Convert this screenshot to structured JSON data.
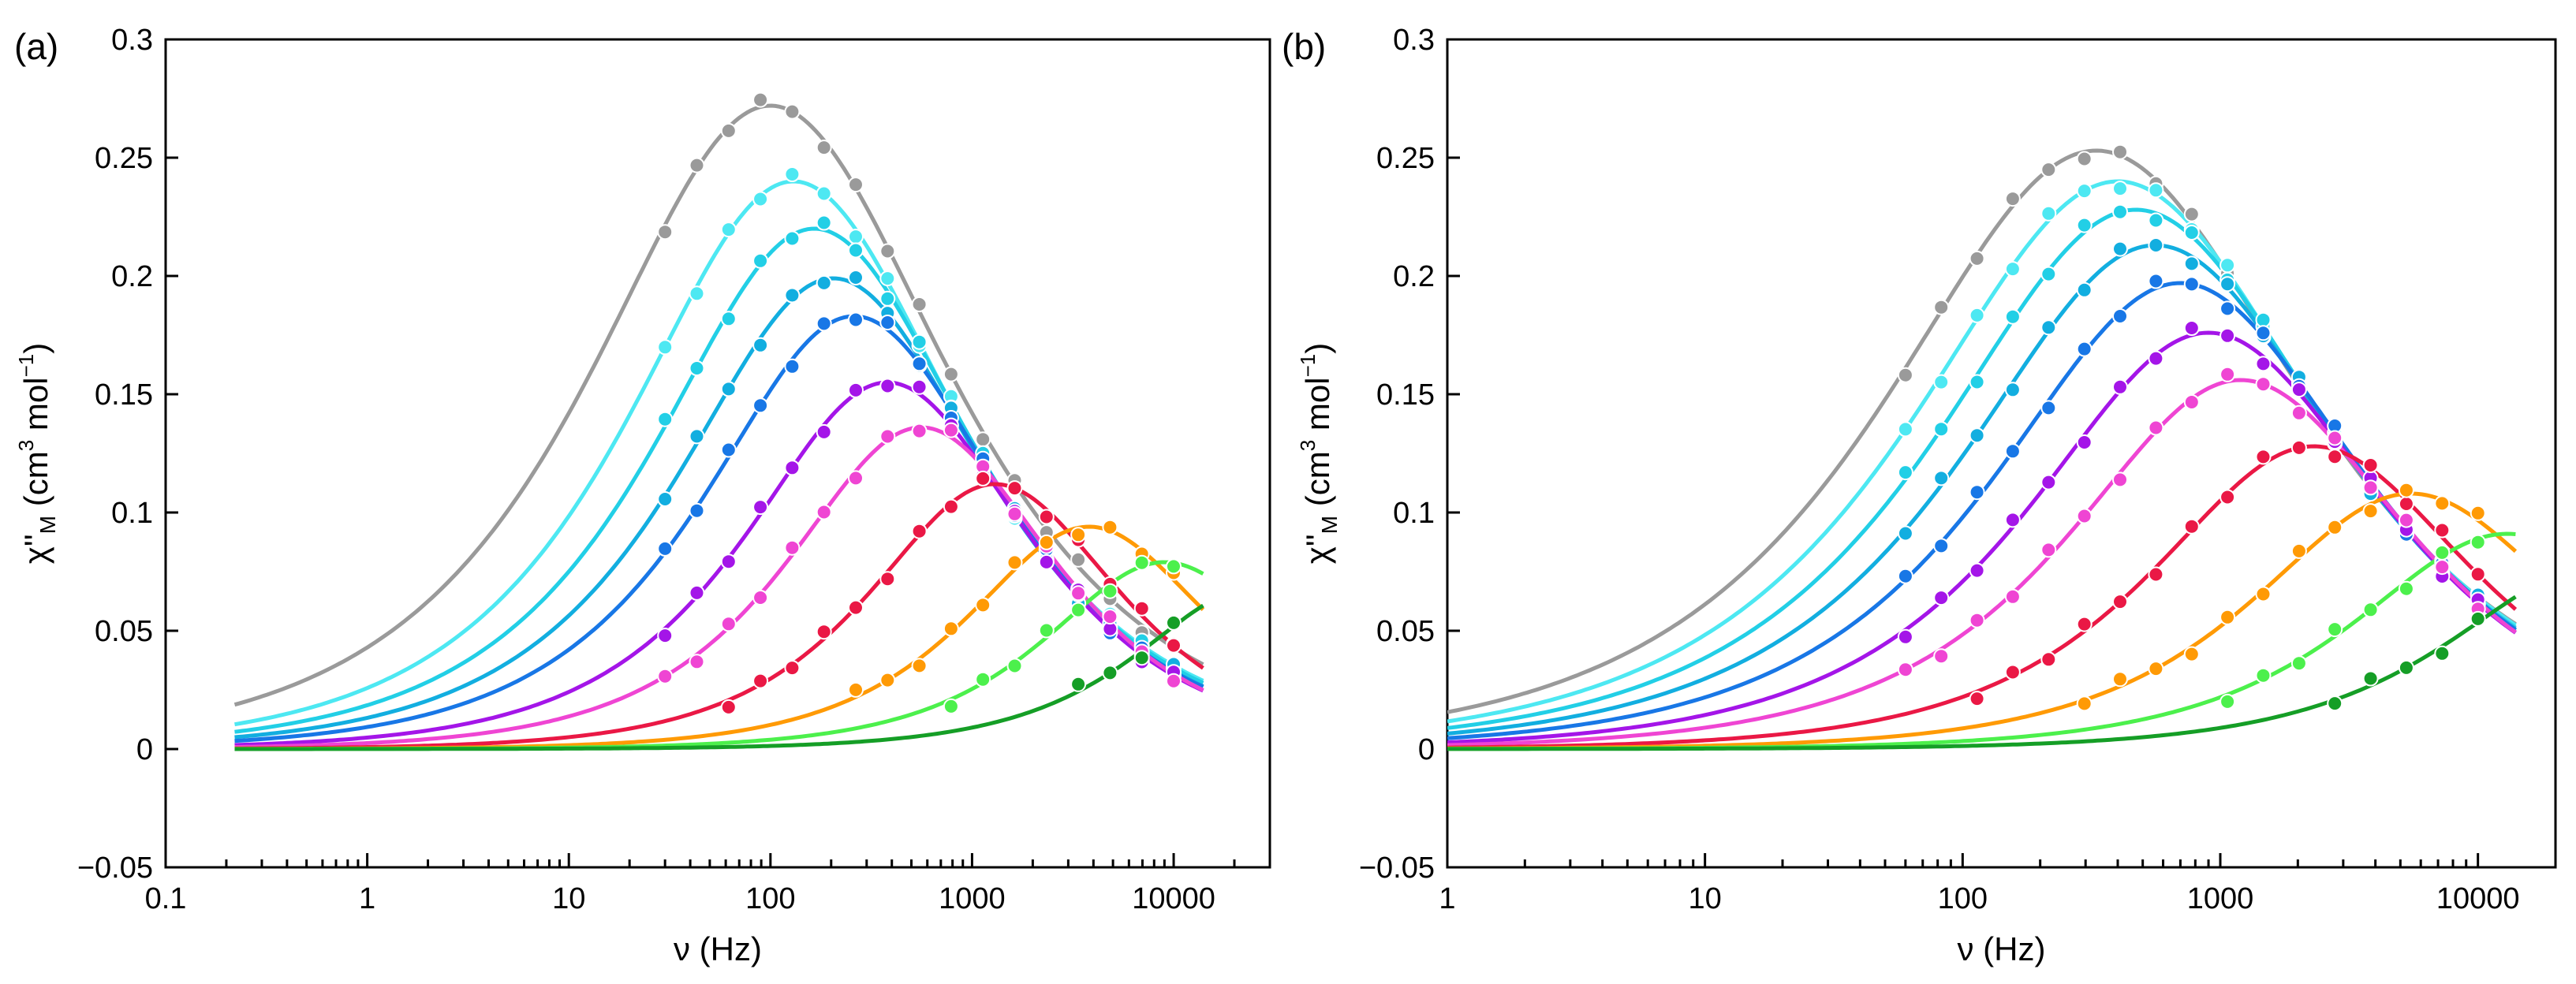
{
  "chart_data": [
    {
      "type": "scatter",
      "panel": "(a)",
      "xscale": "log",
      "xlabel": "ν (Hz)",
      "ylabel": {
        "chi": "χ''",
        "sub": "M",
        "open": " (cm",
        "sup3": "3",
        "mid": " mol",
        "supm1": "−1",
        "close": ")"
      },
      "xlim": [
        0.1,
        30000
      ],
      "ylim": [
        -0.05,
        0.3
      ],
      "xticks": [
        0.1,
        1,
        10,
        100,
        1000,
        10000
      ],
      "xtick_labels": [
        "0.1",
        "1",
        "10",
        "100",
        "1000",
        "10000"
      ],
      "yticks": [
        -0.05,
        0,
        0.05,
        0.1,
        0.15,
        0.2,
        0.25,
        0.3
      ],
      "ytick_labels": [
        "−0.05",
        "0",
        "0.05",
        "0.1",
        "0.15",
        "0.2",
        "0.25",
        "0.3"
      ],
      "fit_range": [
        0.22,
        14000
      ],
      "point_range": [
        30,
        10000
      ],
      "series": [
        {
          "name": "grey",
          "color": "#9a9a9a",
          "peak_freq": 100,
          "peak_height": 0.272,
          "width": 0.55
        },
        {
          "name": "cyan-1",
          "color": "#4de8f2",
          "peak_freq": 130,
          "peak_height": 0.24,
          "width": 0.6
        },
        {
          "name": "cyan-2",
          "color": "#22cfe6",
          "peak_freq": 165,
          "peak_height": 0.22,
          "width": 0.62
        },
        {
          "name": "sky",
          "color": "#12aee0",
          "peak_freq": 205,
          "peak_height": 0.199,
          "width": 0.64
        },
        {
          "name": "blue",
          "color": "#1877e6",
          "peak_freq": 260,
          "peak_height": 0.183,
          "width": 0.66
        },
        {
          "name": "purple",
          "color": "#a415e8",
          "peak_freq": 380,
          "peak_height": 0.155,
          "width": 0.7
        },
        {
          "name": "magenta",
          "color": "#ef45d3",
          "peak_freq": 560,
          "peak_height": 0.136,
          "width": 0.74
        },
        {
          "name": "red",
          "color": "#ea1845",
          "peak_freq": 1300,
          "peak_height": 0.112,
          "width": 0.78
        },
        {
          "name": "orange",
          "color": "#ff9a05",
          "peak_freq": 3800,
          "peak_height": 0.094,
          "width": 0.8
        },
        {
          "name": "light-green",
          "color": "#4cf04c",
          "peak_freq": 9000,
          "peak_height": 0.079,
          "width": 0.82
        },
        {
          "name": "dark-green",
          "color": "#159e26",
          "peak_freq": 25000,
          "peak_height": 0.068,
          "width": 0.84
        }
      ]
    },
    {
      "type": "scatter",
      "panel": "(b)",
      "xscale": "log",
      "xlabel": "ν (Hz)",
      "ylabel": {
        "chi": "χ''",
        "sub": "M",
        "open": " (cm",
        "sup3": "3",
        "mid": " mol",
        "supm1": "−1",
        "close": ")"
      },
      "xlim": [
        1,
        20000
      ],
      "ylim": [
        -0.05,
        0.3
      ],
      "xticks": [
        1,
        10,
        100,
        1000,
        10000
      ],
      "xtick_labels": [
        "1",
        "10",
        "100",
        "1000",
        "10000"
      ],
      "yticks": [
        -0.05,
        0,
        0.05,
        0.1,
        0.15,
        0.2,
        0.25,
        0.3
      ],
      "ytick_labels": [
        "−0.05",
        "0",
        "0.05",
        "0.1",
        "0.15",
        "0.2",
        "0.25",
        "0.3"
      ],
      "fit_range": [
        1,
        14000
      ],
      "point_range": [
        60,
        10000
      ],
      "series": [
        {
          "name": "grey",
          "color": "#9a9a9a",
          "peak_freq": 330,
          "peak_height": 0.253,
          "width": 0.6
        },
        {
          "name": "cyan-1",
          "color": "#4de8f2",
          "peak_freq": 400,
          "peak_height": 0.24,
          "width": 0.62
        },
        {
          "name": "cyan-2",
          "color": "#22cfe6",
          "peak_freq": 470,
          "peak_height": 0.228,
          "width": 0.64
        },
        {
          "name": "sky",
          "color": "#12aee0",
          "peak_freq": 560,
          "peak_height": 0.213,
          "width": 0.66
        },
        {
          "name": "blue",
          "color": "#1877e6",
          "peak_freq": 700,
          "peak_height": 0.197,
          "width": 0.68
        },
        {
          "name": "purple",
          "color": "#a415e8",
          "peak_freq": 900,
          "peak_height": 0.176,
          "width": 0.71
        },
        {
          "name": "magenta",
          "color": "#ef45d3",
          "peak_freq": 1200,
          "peak_height": 0.156,
          "width": 0.74
        },
        {
          "name": "red",
          "color": "#ea1845",
          "peak_freq": 2300,
          "peak_height": 0.128,
          "width": 0.78
        },
        {
          "name": "orange",
          "color": "#ff9a05",
          "peak_freq": 5500,
          "peak_height": 0.108,
          "width": 0.8
        },
        {
          "name": "light-green",
          "color": "#4cf04c",
          "peak_freq": 13000,
          "peak_height": 0.091,
          "width": 0.82
        },
        {
          "name": "dark-green",
          "color": "#159e26",
          "peak_freq": 30000,
          "peak_height": 0.078,
          "width": 0.84
        }
      ]
    }
  ]
}
